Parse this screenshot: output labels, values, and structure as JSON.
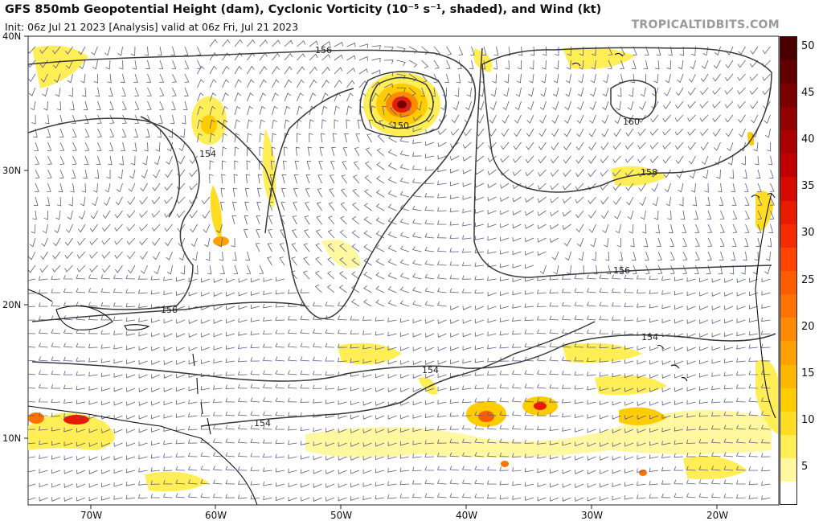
{
  "header": {
    "title": "GFS 850mb Geopotential Height (dam), Cyclonic Vorticity (10⁻⁵ s⁻¹, shaded), and Wind (kt)",
    "subtitle": "Init: 06z Jul 21 2023   [Analysis]   valid at 06z Fri, Jul 21 2023",
    "credit": "TROPICALTIDBITS.COM"
  },
  "map": {
    "lat_labels": [
      "40N",
      "30N",
      "20N",
      "10N"
    ],
    "lon_labels": [
      "70W",
      "60W",
      "50W",
      "40W",
      "30W",
      "20W"
    ],
    "contour_labels": [
      "156",
      "154",
      "150",
      "160",
      "158",
      "156",
      "156",
      "154",
      "154",
      "154"
    ],
    "contour_color": "#3a3a3a",
    "barb_color": "#5a5a8a",
    "land_outline_color": "#111111",
    "vortex_center_color": "#8b0000"
  },
  "colorbar": {
    "labels": [
      "50",
      "45",
      "40",
      "35",
      "30",
      "25",
      "20",
      "15",
      "10",
      "5"
    ],
    "colors": [
      "#ffffff",
      "#fff8a0",
      "#ffee55",
      "#ffdd22",
      "#ffcc00",
      "#ffb700",
      "#ffa200",
      "#ff8c00",
      "#ff7400",
      "#ff5c00",
      "#ff4400",
      "#f52c00",
      "#e81a00",
      "#d60a00",
      "#c20000",
      "#aa0000",
      "#920000",
      "#7a0000",
      "#620000",
      "#4a0000"
    ]
  }
}
